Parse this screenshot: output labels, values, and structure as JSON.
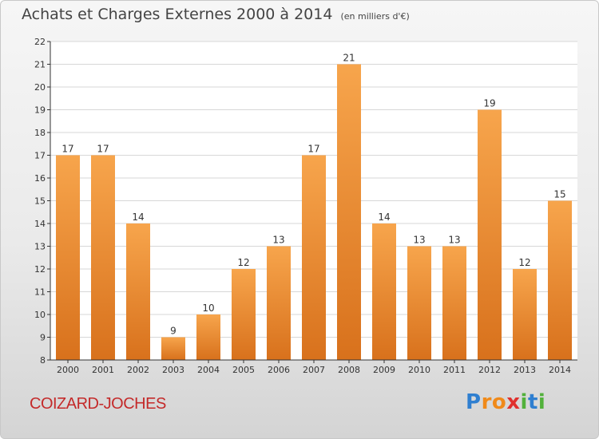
{
  "header": {
    "title": "Achats et Charges Externes 2000 à 2014",
    "unit": "(en milliers d'€)"
  },
  "footer": {
    "place": "COIZARD-JOCHES",
    "logo": [
      "P",
      "r",
      "o",
      "x",
      "i",
      "t",
      "i"
    ]
  },
  "colors": {
    "bar_light": "#f7a54c",
    "bar_dark": "#d8711c",
    "grid": "#d7d7d7",
    "axis": "#333333",
    "title": "#444444",
    "place": "#c42a2a"
  },
  "chart_data": {
    "type": "bar",
    "title": "Achats et Charges Externes 2000 à 2014",
    "subtitle": "(en milliers d'€)",
    "xlabel": "",
    "ylabel": "",
    "categories": [
      "2000",
      "2001",
      "2002",
      "2003",
      "2004",
      "2005",
      "2006",
      "2007",
      "2008",
      "2009",
      "2010",
      "2011",
      "2012",
      "2013",
      "2014"
    ],
    "values": [
      17,
      17,
      14,
      9,
      10,
      12,
      13,
      17,
      21,
      14,
      13,
      13,
      19,
      12,
      15
    ],
    "ylim": [
      8,
      22
    ],
    "yticks": [
      8,
      9,
      10,
      11,
      12,
      13,
      14,
      15,
      16,
      17,
      18,
      19,
      20,
      21,
      22
    ],
    "grid": true,
    "data_labels": true
  }
}
